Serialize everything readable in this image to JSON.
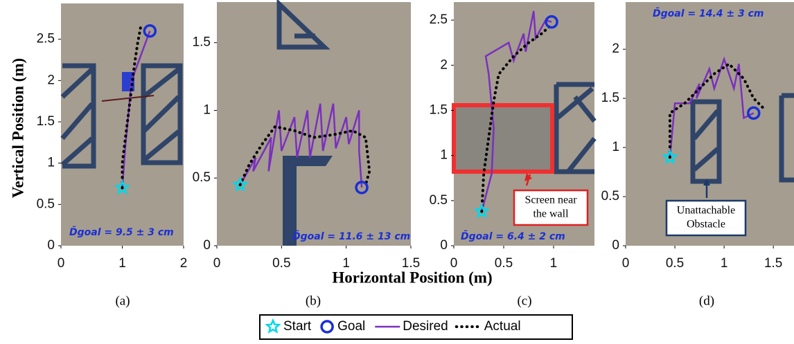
{
  "figure": {
    "xlabel": "Horizontal Position (m)",
    "ylabel": "Vertical Position (m)"
  },
  "chart_data": [
    {
      "type": "line",
      "caption": "(a)",
      "xlim": [
        0,
        2
      ],
      "ylim": [
        0,
        2.95
      ],
      "xticks": [
        0,
        1,
        2
      ],
      "yticks": [
        0,
        0.5,
        1,
        1.5,
        2,
        2.5
      ],
      "annotations": [
        {
          "text": "D̄goal = 9.5 ± 3 cm"
        }
      ],
      "series": [
        {
          "name": "Desired",
          "color": "#7b2fbe",
          "style": "solid",
          "x": [
            1.0,
            1.05,
            1.1,
            1.15,
            1.3,
            1.45
          ],
          "values": [
            0.7,
            1.2,
            1.6,
            2.0,
            2.3,
            2.6
          ]
        },
        {
          "name": "Actual",
          "color": "#000000",
          "style": "dotted",
          "x": [
            1.0,
            1.0,
            1.05,
            1.1,
            1.15,
            1.2,
            1.25,
            1.3
          ],
          "values": [
            0.7,
            1.0,
            1.3,
            1.6,
            1.9,
            2.2,
            2.45,
            2.65
          ]
        }
      ],
      "markers": [
        {
          "name": "Start",
          "shape": "star",
          "color": "#00d8e8",
          "x": 1.0,
          "y": 0.7
        },
        {
          "name": "Goal",
          "shape": "circle",
          "color": "#1a2fd6",
          "x": 1.45,
          "y": 2.6
        }
      ]
    },
    {
      "type": "line",
      "caption": "(b)",
      "xlim": [
        0,
        1.5
      ],
      "ylim": [
        0,
        1.8
      ],
      "xticks": [
        0,
        0.5,
        1,
        1.5
      ],
      "yticks": [
        0,
        0.5,
        1,
        1.5
      ],
      "annotations": [
        {
          "text": "D̄goal = 11.6 ± 13 cm"
        }
      ],
      "series": [
        {
          "name": "Desired",
          "color": "#7b2fbe",
          "style": "solid",
          "x": [
            0.18,
            0.3,
            0.28,
            0.42,
            0.4,
            0.48,
            0.5,
            0.6,
            0.62,
            0.7,
            0.72,
            0.8,
            0.82,
            0.9,
            0.92,
            1.0,
            1.02,
            1.1,
            1.1,
            1.12
          ],
          "values": [
            0.45,
            0.65,
            0.55,
            0.8,
            0.55,
            1.0,
            0.7,
            0.95,
            0.65,
            1.0,
            0.65,
            1.05,
            0.7,
            1.05,
            0.72,
            0.95,
            0.75,
            1.0,
            0.7,
            0.43
          ]
        },
        {
          "name": "Actual",
          "color": "#000000",
          "style": "dotted",
          "x": [
            0.18,
            0.25,
            0.35,
            0.45,
            0.6,
            0.75,
            0.9,
            1.05,
            1.15,
            1.18,
            1.15
          ],
          "values": [
            0.45,
            0.6,
            0.75,
            0.88,
            0.85,
            0.8,
            0.82,
            0.85,
            0.8,
            0.55,
            0.45
          ]
        }
      ],
      "markers": [
        {
          "name": "Start",
          "shape": "star",
          "color": "#00d8e8",
          "x": 0.18,
          "y": 0.45
        },
        {
          "name": "Goal",
          "shape": "circle",
          "color": "#1a2fd6",
          "x": 1.12,
          "y": 0.43
        }
      ]
    },
    {
      "type": "line",
      "caption": "(c)",
      "xlim": [
        0,
        1.41
      ],
      "ylim": [
        0,
        2.7
      ],
      "xticks": [
        0,
        0.5,
        1
      ],
      "yticks": [
        0,
        0.5,
        1,
        1.5,
        2,
        2.5
      ],
      "annotations": [
        {
          "text": "D̄goal = 6.4 ± 2 cm"
        },
        {
          "lines": [
            "Screen near",
            "the wall"
          ]
        }
      ],
      "series": [
        {
          "name": "Desired",
          "color": "#7b2fbe",
          "style": "solid",
          "x": [
            0.28,
            0.38,
            0.4,
            0.35,
            0.32,
            0.55,
            0.6,
            0.7,
            0.72,
            0.8,
            0.82,
            0.92,
            0.98
          ],
          "values": [
            0.38,
            0.8,
            1.3,
            1.9,
            2.1,
            2.25,
            2.05,
            2.35,
            2.15,
            2.6,
            2.3,
            2.5,
            2.48
          ]
        },
        {
          "name": "Actual",
          "color": "#000000",
          "style": "dotted",
          "x": [
            0.28,
            0.3,
            0.35,
            0.4,
            0.45,
            0.6,
            0.75,
            0.88,
            0.98
          ],
          "values": [
            0.38,
            0.8,
            1.2,
            1.6,
            1.9,
            2.1,
            2.25,
            2.35,
            2.45
          ]
        }
      ],
      "markers": [
        {
          "name": "Start",
          "shape": "star",
          "color": "#00d8e8",
          "x": 0.28,
          "y": 0.38
        },
        {
          "name": "Goal",
          "shape": "circle",
          "color": "#1a2fd6",
          "x": 0.98,
          "y": 2.48
        }
      ]
    },
    {
      "type": "line",
      "caption": "(d)",
      "xlim": [
        0,
        1.71
      ],
      "ylim": [
        0,
        2.48
      ],
      "xticks": [
        0,
        0.5,
        1,
        1.5
      ],
      "yticks": [
        0,
        0.5,
        1,
        1.5,
        2
      ],
      "annotations": [
        {
          "text": "D̄goal = 14.4 ± 3 cm"
        },
        {
          "lines": [
            "Unattachable",
            "Obstacle"
          ]
        }
      ],
      "series": [
        {
          "name": "Desired",
          "color": "#7b2fbe",
          "style": "solid",
          "x": [
            0.45,
            0.5,
            0.65,
            0.75,
            0.72,
            0.85,
            0.9,
            1.0,
            1.1,
            1.15,
            1.2,
            1.3
          ],
          "values": [
            0.9,
            1.45,
            1.45,
            1.65,
            1.5,
            1.8,
            1.6,
            1.9,
            1.6,
            1.85,
            1.3,
            1.35
          ]
        },
        {
          "name": "Actual",
          "color": "#000000",
          "style": "dotted",
          "x": [
            0.45,
            0.45,
            0.6,
            0.75,
            0.9,
            1.05,
            1.2,
            1.3,
            1.4
          ],
          "values": [
            0.9,
            1.35,
            1.45,
            1.6,
            1.75,
            1.85,
            1.7,
            1.5,
            1.4
          ]
        }
      ],
      "markers": [
        {
          "name": "Start",
          "shape": "star",
          "color": "#00d8e8",
          "x": 0.45,
          "y": 0.9
        },
        {
          "name": "Goal",
          "shape": "circle",
          "color": "#1a2fd6",
          "x": 1.3,
          "y": 1.35
        }
      ]
    }
  ]
}
